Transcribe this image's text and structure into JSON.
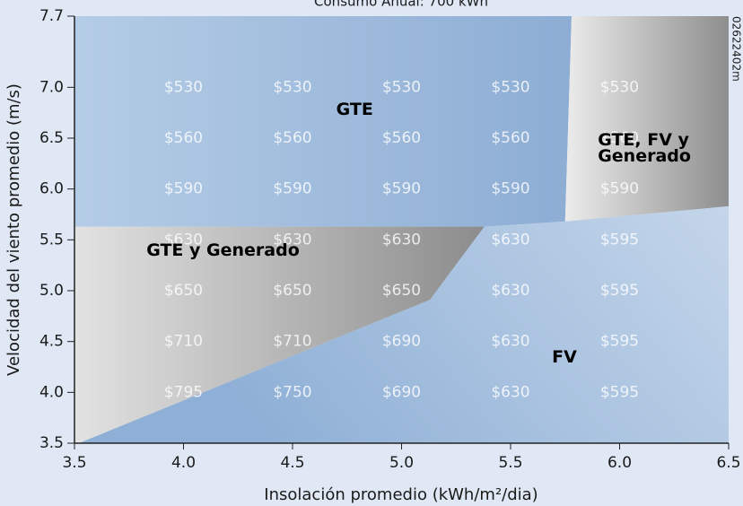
{
  "chart_data": {
    "type": "region",
    "title": "Consumo Anual: 700 kWh",
    "side_note": "02622402m",
    "x_label": "Insolación promedio (kWh/m²/dia)",
    "y_label": "Velocidad del viento promedio (m/s)",
    "xlim": [
      3.5,
      6.5
    ],
    "ylim": [
      3.5,
      7.7
    ],
    "xticks": [
      3.5,
      {
        "value": 4,
        "label": "4.0"
      },
      4.5,
      {
        "value": 5,
        "label": "5.0"
      },
      5.5,
      {
        "value": 6,
        "label": "6.0"
      },
      6.5
    ],
    "yticks": [
      3.5,
      {
        "value": 4,
        "label": "4.0"
      },
      4.5,
      {
        "value": 5,
        "label": "5.0"
      },
      5.5,
      {
        "value": 6,
        "label": "6.0"
      },
      6.5,
      {
        "value": 7,
        "label": "7.0"
      },
      7.7
    ],
    "regions": [
      {
        "label": "GTE",
        "colors": [
          "#b4cce6",
          "#8dadd4"
        ],
        "points": [
          [
            3.5,
            7.7
          ],
          [
            5.78,
            7.7
          ],
          [
            5.75,
            5.68
          ],
          [
            5.38,
            5.63
          ],
          [
            3.5,
            5.63
          ]
        ]
      },
      {
        "label": "GTE, FV y Generado",
        "colors": [
          "#ececec",
          "#8e8e8e"
        ],
        "points": [
          [
            5.78,
            7.7
          ],
          [
            6.5,
            7.7
          ],
          [
            6.5,
            5.83
          ],
          [
            5.75,
            5.68
          ]
        ]
      },
      {
        "label": "GTE y Generado",
        "colors": [
          "#e2e2e2",
          "#8c8c8c"
        ],
        "points": [
          [
            3.5,
            5.63
          ],
          [
            5.38,
            5.63
          ],
          [
            5.13,
            4.91
          ],
          [
            3.52,
            3.5
          ],
          [
            3.5,
            3.5
          ]
        ]
      },
      {
        "label": "FV",
        "colors": [
          "#8fb0d6",
          "#c9d9ec"
        ],
        "points": [
          [
            3.52,
            3.5
          ],
          [
            5.13,
            4.91
          ],
          [
            5.38,
            5.63
          ],
          [
            5.75,
            5.68
          ],
          [
            6.5,
            5.83
          ],
          [
            6.5,
            3.5
          ]
        ]
      }
    ],
    "cost_grid": {
      "x": [
        4,
        4.5,
        5,
        5.5,
        6
      ],
      "y": [
        7,
        6.5,
        6,
        5.5,
        5,
        4.5,
        4
      ],
      "values": [
        [
          530,
          530,
          530,
          530,
          530
        ],
        [
          560,
          560,
          560,
          560,
          560
        ],
        [
          590,
          590,
          590,
          590,
          590
        ],
        [
          630,
          630,
          630,
          630,
          595
        ],
        [
          650,
          650,
          650,
          630,
          595
        ],
        [
          710,
          710,
          690,
          630,
          595
        ],
        [
          795,
          750,
          690,
          630,
          595
        ]
      ],
      "value_labels": [
        [
          "$530",
          "$530",
          "$530",
          "$530",
          "$530"
        ],
        [
          "$560",
          "$560",
          "$560",
          "$560",
          "$560"
        ],
        [
          "$590",
          "$590",
          "$590",
          "$590",
          "$590"
        ],
        [
          "$630",
          "$630",
          "$630",
          "$630",
          "$595"
        ],
        [
          "$650",
          "$650",
          "$650",
          "$630",
          "$595"
        ],
        [
          "$710",
          "$710",
          "$690",
          "$630",
          "$595"
        ],
        [
          "$795",
          "$750",
          "$690",
          "$630",
          "$595"
        ]
      ]
    }
  }
}
